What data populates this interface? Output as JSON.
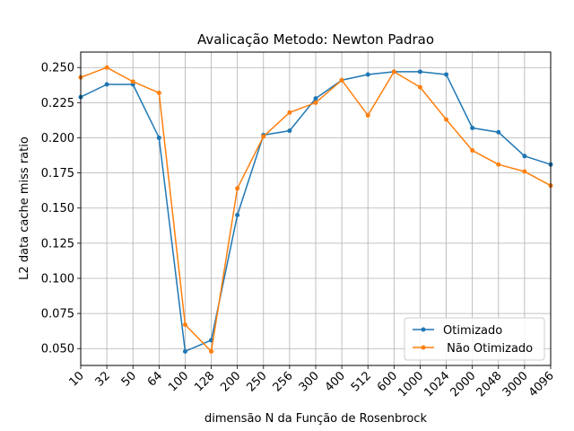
{
  "chart_data": {
    "type": "line",
    "title": "Avalicação Metodo:  Newton Padrao",
    "xlabel": "dimensão N da Função de Rosenbrock",
    "ylabel": "L2 data cache miss ratio",
    "categories": [
      "10",
      "32",
      "50",
      "64",
      "100",
      "128",
      "200",
      "250",
      "256",
      "300",
      "400",
      "512",
      "600",
      "1000",
      "1024",
      "2000",
      "2048",
      "3000",
      "4096"
    ],
    "yticks": [
      0.05,
      0.075,
      0.1,
      0.125,
      0.15,
      0.175,
      0.2,
      0.225,
      0.25
    ],
    "ytick_labels": [
      "0.050",
      "0.075",
      "0.100",
      "0.125",
      "0.150",
      "0.175",
      "0.200",
      "0.225",
      "0.250"
    ],
    "ylim": [
      0.038,
      0.261
    ],
    "grid": true,
    "legend_position": "lower-right",
    "series": [
      {
        "name": "Otimizado",
        "color": "#1f77b4",
        "values": [
          0.229,
          0.238,
          0.238,
          0.2,
          0.048,
          0.056,
          0.145,
          0.202,
          0.205,
          0.228,
          0.241,
          0.245,
          0.247,
          0.247,
          0.245,
          0.207,
          0.204,
          0.187,
          0.181
        ]
      },
      {
        "name": " Não Otimizado",
        "color": "#ff7f0e",
        "values": [
          0.243,
          0.25,
          0.24,
          0.232,
          0.067,
          0.048,
          0.164,
          0.201,
          0.218,
          0.225,
          0.241,
          0.216,
          0.247,
          0.236,
          0.213,
          0.191,
          0.181,
          0.176,
          0.166
        ]
      }
    ]
  }
}
